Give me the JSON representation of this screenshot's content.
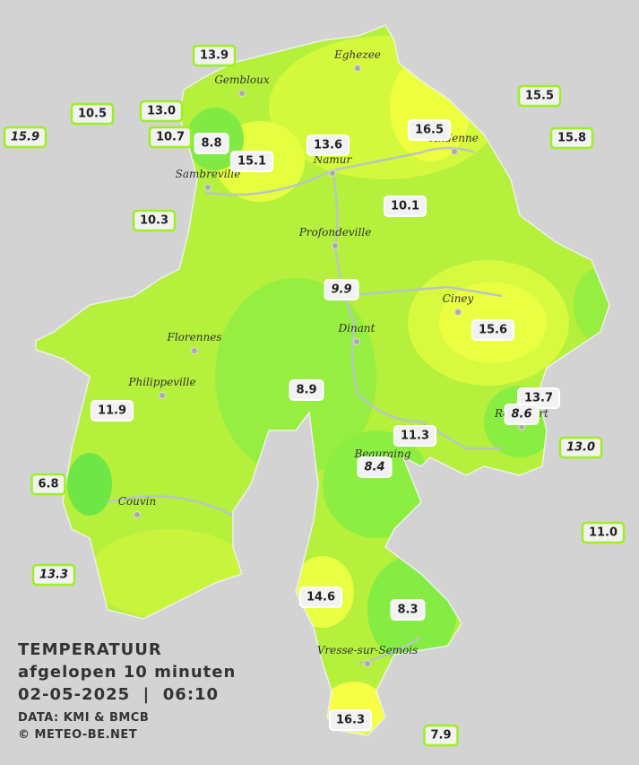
{
  "header": {
    "title": "TEMPERATUUR",
    "subtitle": "afgelopen 10 minuten",
    "datetime": "02-05-2025  |  06:10",
    "source": "DATA: KMI & BMCB",
    "credit": "© METEO-BE.NET"
  },
  "towns": [
    "Eghezee",
    "Gembloux",
    "Andenne",
    "Namur",
    "Sambreville",
    "Profondeville",
    "Ciney",
    "Dinant",
    "Florennes",
    "Philippeville",
    "Rochefort",
    "Beauraing",
    "Couvin",
    "Vresse-sur-Semois"
  ],
  "stations": [
    {
      "value": "13.9",
      "italic": false,
      "outside": true
    },
    {
      "value": "10.5",
      "italic": false,
      "outside": true
    },
    {
      "value": "13.0",
      "italic": false,
      "outside": true
    },
    {
      "value": "15.9",
      "italic": true,
      "outside": true
    },
    {
      "value": "10.7",
      "italic": false,
      "outside": true
    },
    {
      "value": "8.8",
      "italic": false,
      "outside": false
    },
    {
      "value": "15.1",
      "italic": false,
      "outside": false
    },
    {
      "value": "13.6",
      "italic": false,
      "outside": false
    },
    {
      "value": "16.5",
      "italic": false,
      "outside": false
    },
    {
      "value": "15.5",
      "italic": false,
      "outside": true
    },
    {
      "value": "15.8",
      "italic": false,
      "outside": true
    },
    {
      "value": "10.3",
      "italic": false,
      "outside": true
    },
    {
      "value": "10.1",
      "italic": false,
      "outside": false
    },
    {
      "value": "9.9",
      "italic": true,
      "outside": false
    },
    {
      "value": "15.6",
      "italic": false,
      "outside": false
    },
    {
      "value": "8.9",
      "italic": false,
      "outside": false
    },
    {
      "value": "13.7",
      "italic": false,
      "outside": false
    },
    {
      "value": "8.6",
      "italic": true,
      "outside": false
    },
    {
      "value": "11.9",
      "italic": false,
      "outside": false
    },
    {
      "value": "11.3",
      "italic": false,
      "outside": false
    },
    {
      "value": "13.0",
      "italic": true,
      "outside": true
    },
    {
      "value": "8.4",
      "italic": true,
      "outside": false
    },
    {
      "value": "6.8",
      "italic": false,
      "outside": true
    },
    {
      "value": "11.0",
      "italic": false,
      "outside": true
    },
    {
      "value": "13.3",
      "italic": true,
      "outside": true
    },
    {
      "value": "14.6",
      "italic": false,
      "outside": false
    },
    {
      "value": "8.3",
      "italic": false,
      "outside": false
    },
    {
      "value": "16.3",
      "italic": false,
      "outside": false
    },
    {
      "value": "7.9",
      "italic": false,
      "outside": true
    }
  ]
}
